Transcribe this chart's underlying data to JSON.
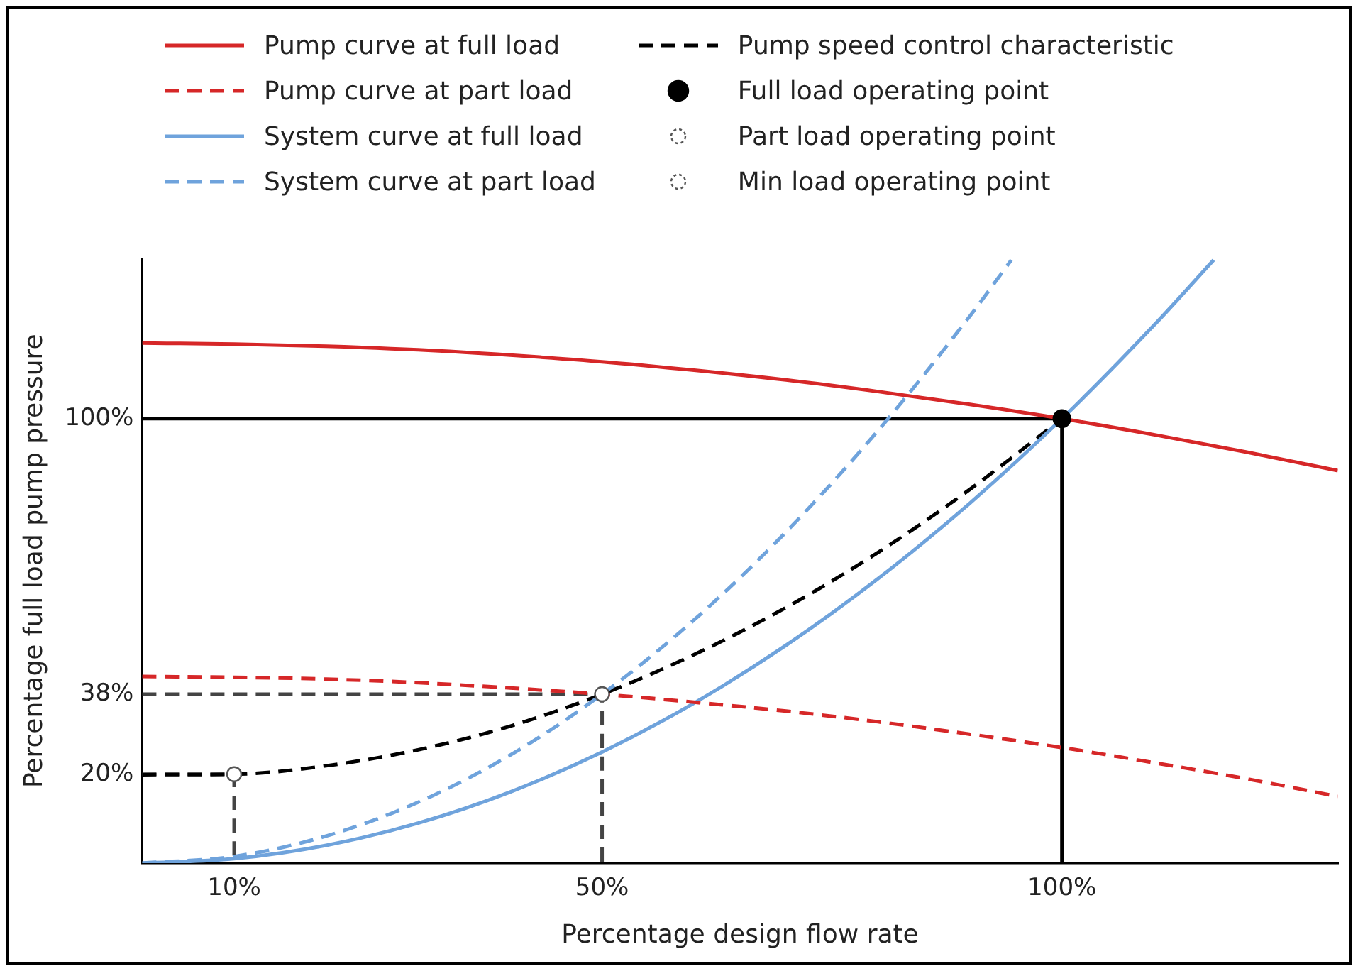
{
  "chart_data": {
    "type": "line",
    "xlabel": "Percentage design flow rate",
    "ylabel": "Percentage full load pump pressure",
    "xlim": [
      0,
      130
    ],
    "ylim": [
      0,
      136
    ],
    "xticks": [
      {
        "value": 10,
        "label": "10%"
      },
      {
        "value": 50,
        "label": "50%"
      },
      {
        "value": 100,
        "label": "100%"
      }
    ],
    "yticks": [
      {
        "value": 20,
        "label": "20%"
      },
      {
        "value": 38,
        "label": "38%"
      },
      {
        "value": 100,
        "label": "100%"
      }
    ],
    "grid": false,
    "legend": "top",
    "series": [
      {
        "name": "Pump curve at full load",
        "line_style": "solid",
        "color": "#d62728",
        "x": [
          0,
          10,
          20,
          30,
          40,
          50,
          60,
          70,
          80,
          90,
          100,
          110,
          120,
          130
        ],
        "values": [
          117,
          116.8,
          116.3,
          115.5,
          114.3,
          112.8,
          110.9,
          108.7,
          106.1,
          103.2,
          100,
          96.4,
          92.5,
          88.3
        ]
      },
      {
        "name": "Pump curve at part load",
        "line_style": "dashed",
        "color": "#d62728",
        "x": [
          0,
          10,
          20,
          30,
          40,
          50,
          60,
          70,
          80,
          90,
          100,
          110,
          120,
          130
        ],
        "values": [
          42,
          41.8,
          41.4,
          40.6,
          39.4,
          38,
          36.2,
          34.2,
          31.8,
          29,
          26,
          22.6,
          19,
          15
        ]
      },
      {
        "name": "System curve at full load",
        "line_style": "solid",
        "color": "#6fa3dc",
        "x": [
          0,
          10,
          20,
          30,
          40,
          50,
          60,
          70,
          80,
          90,
          100,
          110,
          116.5
        ],
        "values": [
          0,
          1,
          4,
          9,
          16,
          25,
          36,
          49,
          64,
          81,
          100,
          121,
          135.7
        ]
      },
      {
        "name": "System curve at part load",
        "line_style": "dashed",
        "color": "#6fa3dc",
        "x": [
          0,
          10,
          20,
          30,
          40,
          50,
          60,
          70,
          80,
          90,
          94.5
        ],
        "values": [
          0,
          1.5,
          6.1,
          13.7,
          24.3,
          38,
          54.7,
          74.5,
          97.3,
          123.1,
          135.7
        ]
      },
      {
        "name": "Pump speed control characteristic",
        "line_style": "dashed",
        "color": "#000000",
        "x": [
          0,
          10,
          20,
          30,
          40,
          50,
          60,
          70,
          80,
          90,
          100
        ],
        "values": [
          19.9,
          20,
          21.9,
          25.5,
          30.8,
          38,
          46.9,
          57.5,
          69.9,
          84.1,
          100
        ]
      },
      {
        "name": "Full load operating point",
        "type": "scatter",
        "marker": "circle",
        "line_style": "solid",
        "color": "#000000",
        "x": [
          100
        ],
        "values": [
          100
        ]
      },
      {
        "name": "Part load operating point",
        "type": "scatter",
        "marker": "circle",
        "line_style": "dashed",
        "color": "#555555",
        "x": [
          50
        ],
        "values": [
          38
        ]
      },
      {
        "name": "Min load operating point",
        "type": "scatter",
        "marker": "circle",
        "line_style": "dashed",
        "color": "#555555",
        "x": [
          10
        ],
        "values": [
          20
        ]
      },
      {
        "line_style": "solid",
        "color": "#000000",
        "x": [
          0,
          100,
          100
        ],
        "values": [
          100,
          100,
          0
        ]
      },
      {
        "line_style": "dashed",
        "color": "#444444",
        "x": [
          0,
          50,
          50
        ],
        "values": [
          38,
          38,
          0
        ]
      },
      {
        "line_style": "dashed",
        "color": "#444444",
        "x": [
          0,
          10,
          10
        ],
        "values": [
          20,
          20,
          0
        ]
      }
    ]
  }
}
